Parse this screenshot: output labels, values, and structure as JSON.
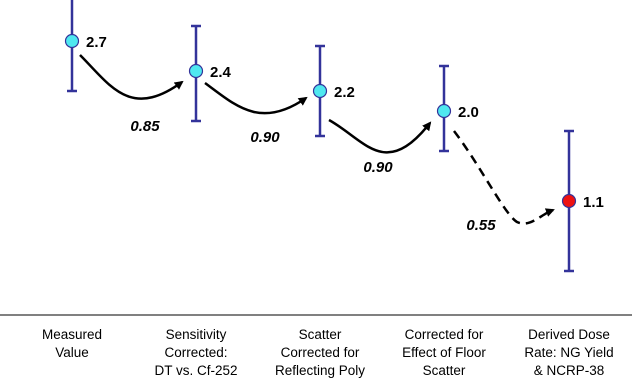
{
  "chart_data": {
    "type": "scatter",
    "categories": [
      [
        "Measured",
        "Value"
      ],
      [
        "Sensitivity",
        "Corrected:",
        "DT vs. Cf-252"
      ],
      [
        "Scatter",
        "Corrected for",
        "Reflecting Poly"
      ],
      [
        "Corrected for",
        "Effect of Floor",
        "Scatter"
      ],
      [
        "Derived Dose",
        "Rate: NG Yield",
        "& NCRP-38"
      ]
    ],
    "values": [
      2.7,
      2.4,
      2.2,
      2.0,
      1.1
    ],
    "value_labels": [
      "2.7",
      "2.4",
      "2.2",
      "2.0",
      "1.1"
    ],
    "error_bars": [
      {
        "low": 2.2,
        "high": 3.2
      },
      {
        "low": 1.9,
        "high": 2.85
      },
      {
        "low": 1.75,
        "high": 2.65
      },
      {
        "low": 1.6,
        "high": 2.45
      },
      {
        "low": 0.4,
        "high": 1.8
      }
    ],
    "transitions": [
      {
        "factor": "0.85",
        "style": "solid"
      },
      {
        "factor": "0.90",
        "style": "solid"
      },
      {
        "factor": "0.90",
        "style": "solid"
      },
      {
        "factor": "0.55",
        "style": "dashed"
      }
    ],
    "point_colors": [
      "#4fe8f0",
      "#4fe8f0",
      "#4fe8f0",
      "#4fe8f0",
      "#ee1111"
    ],
    "errorbar_color": "#33339a",
    "title": "",
    "xlabel": "",
    "ylabel": ""
  }
}
